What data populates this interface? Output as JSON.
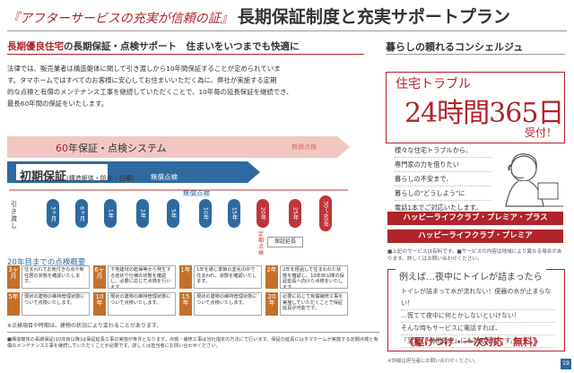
{
  "header": {
    "subtitle": "『アフターサービスの充実が信頼の証』",
    "title": "長期保証制度と充実サポートプラン"
  },
  "left": {
    "section_title_red": "長期優良住宅",
    "section_title": "の長期保証・点検サポート　住まいをいつまでも快適に",
    "intro": [
      "法律では、販売業者は構造躯体に関して引き渡しから10年間保証することが定められていま",
      "す。タマホームではすべてのお客様に安心してお住まいいただく為に、弊社が実施する定期",
      "的な点検と有償のメンテナンス工事を継続していただくことで、10年毎の延長保証を継続でき、",
      "最長60年間の保証をいたします。"
    ],
    "system_title_num": "60",
    "system_title": "年保証・点検システム",
    "mujo_top": "無償点検",
    "initial_title": "初期保証",
    "initial_sub": "(構造躯体・防水・白蟻)",
    "mujo_mid": "無償点検",
    "start_label": "引き渡し",
    "pills_blue": [
      "3ヶ月",
      "6ヶ月",
      "1年",
      "2年",
      "5年",
      "10年",
      "15年"
    ],
    "pills_red": [
      "20年",
      "25年",
      "30〜60年"
    ],
    "teiki": "定期点検",
    "enchou": "保証延長",
    "gaiyo": "20年目までの点検概要",
    "inspections": [
      {
        "period": "3ヶ月",
        "text": "住まわれてお気付きの点や新住居の状態を確認いたします。"
      },
      {
        "period": "6ヶ月",
        "text": "下地建材の乾燥等から発生する症状や仕様の状態を確認し、必要に応じて点検を行います。"
      },
      {
        "period": "1年",
        "text": "1年を通じ季節の変化の中で住まわれ、状態を確認いたします。"
      },
      {
        "period": "2年",
        "text": "2年を経過して住まわれた状態を確認し、10年目以降の保証延長へ向けた点検をいたします。"
      },
      {
        "period": "5年",
        "text": "現状の建物の維持管理状態について点検いたします。"
      },
      {
        "period": "10年",
        "text": "現状の建物の維持管理状態について点検いたします。"
      },
      {
        "period": "15年",
        "text": "現状の建物の維持管理状態について点検いたします。"
      },
      {
        "period": "20年",
        "text": "必要に応じて有償補修工事を実施していただくことで保証延長が可能です。"
      }
    ],
    "footnote": "※点検項目や時期は、建物の状況により変わることがあります。",
    "legal": "■構造躯体の長期保証(10年目以降)は保証延長工事の実施が条件となります。点検・補修工事は当社指定の方法にて行います。保証の延長にはタマホームが実施する定期点検と有償のメンテナンス工事を継続していただくことが必要です。詳しくは担当者にお問い合わせください。"
  },
  "right": {
    "section_title": "暮らしの頼れるコンシェルジュ",
    "box_line1": "住宅トラブル",
    "box_line2": "24時間365日",
    "box_line3": "受付！",
    "desc": [
      "様々な住宅トラブルから、",
      "専門家の力を借りたい",
      "暮らしの不安まで、",
      "暮らしの\"どうしよう\"に",
      "電話1本でご対応いたします。",
      "お気軽にご連絡ください。"
    ],
    "plan1": "ハッピーライフクラブ・プレミア・プラス",
    "plan2": "ハッピーライフクラブ・プレミア",
    "note": "■上記のサービスは有料です。■サービスの内容は地域により異なる場合があります。詳しくはお問い合わせください。",
    "night_title": "例えば…夜中にトイレが詰まったら",
    "night_lines": [
      "トイレが詰まって水が流れない！便器の水が止まらない！",
      "…慌てて夜中に何とかしないといけない！",
      "そんな時もサービスに電話すれば、",
      "「至急」「時間指定」にも対応可能です。"
    ],
    "night_foot": "《駆けつけ・一次対応　無料》",
    "foot": "※詳細は担当者にお問い合わせください。"
  },
  "page_number": "19"
}
